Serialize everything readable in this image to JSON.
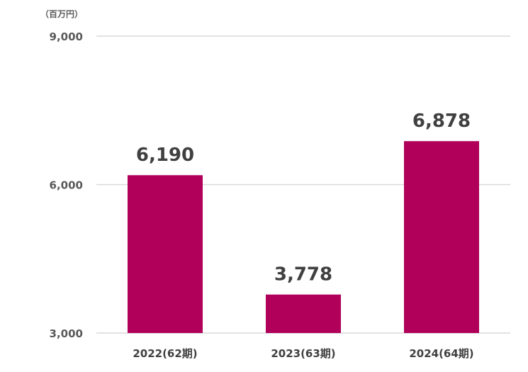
{
  "chart_data": {
    "type": "bar",
    "unit_label": "（百万円）",
    "categories": [
      "2022(62期)",
      "2023(63期)",
      "2024(64期)"
    ],
    "values": [
      6190,
      3778,
      6878
    ],
    "data_labels": [
      "6,190",
      "3,778",
      "6,878"
    ],
    "ylim": [
      3000,
      9000
    ],
    "yticks": [
      3000,
      6000,
      9000
    ],
    "ytick_labels": [
      "3,000",
      "6,000",
      "9,000"
    ],
    "grid": true,
    "title": "",
    "xlabel": "",
    "ylabel": "",
    "colors": {
      "bar": "#B0005A",
      "grid": "#D9D9D9"
    }
  }
}
